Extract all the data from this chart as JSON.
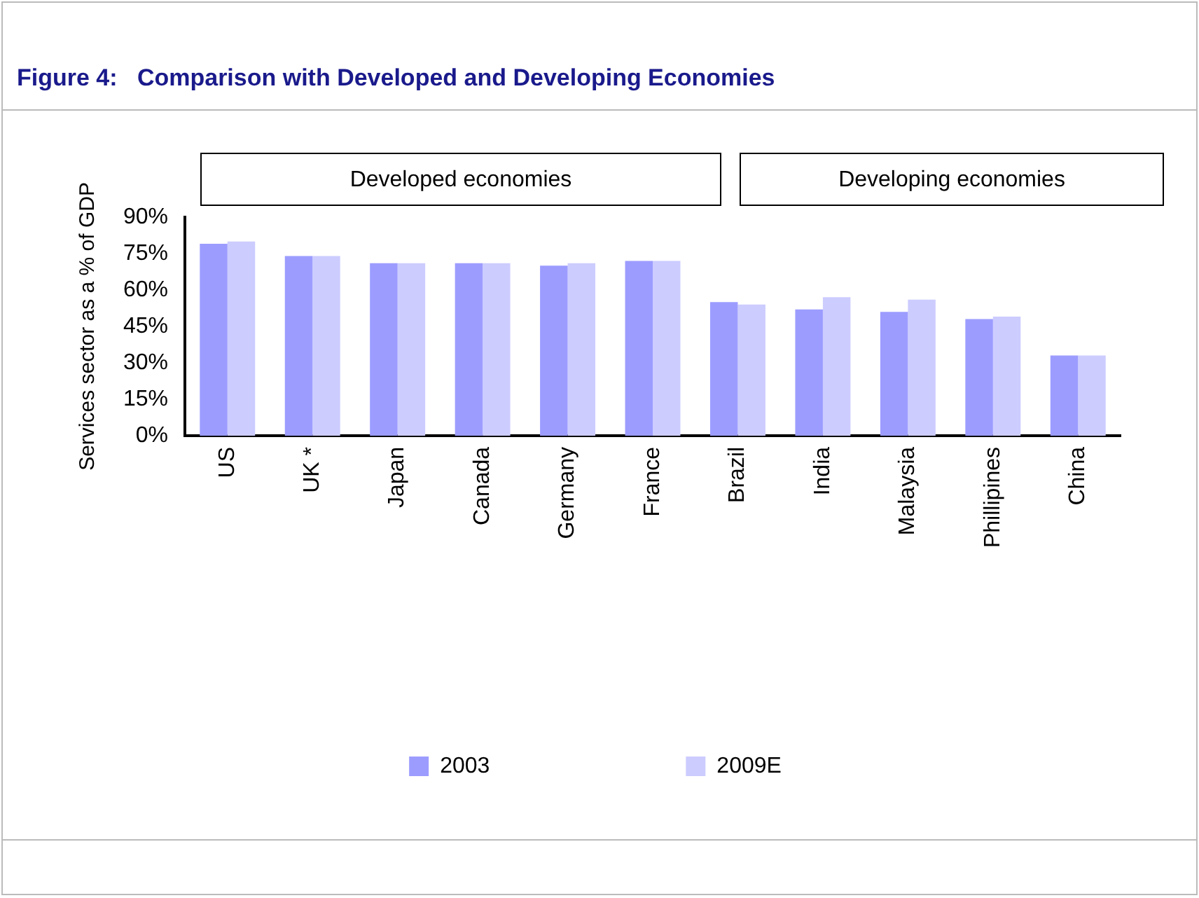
{
  "chart_data": {
    "type": "bar",
    "title": "Figure 4:   Comparison with Developed and Developing Economies",
    "ylabel": "Services sector as a % of GDP",
    "annotations": [
      "Developed economies",
      "Developing economies"
    ],
    "categories": [
      "US",
      "UK *",
      "Japan",
      "Canada",
      "Germany",
      "France",
      "Brazil",
      "India",
      "Malaysia",
      "Phillipines",
      "China"
    ],
    "series": [
      {
        "name": "2003",
        "color": "#9c9cff",
        "values": [
          79,
          74,
          71,
          71,
          70,
          72,
          55,
          52,
          51,
          48,
          33
        ]
      },
      {
        "name": "2009E",
        "color": "#ccccff",
        "values": [
          80,
          74,
          71,
          71,
          71,
          72,
          54,
          57,
          56,
          49,
          33
        ]
      }
    ],
    "ylim": [
      0,
      90
    ],
    "yticks": [
      {
        "value": 0,
        "label": "0%"
      },
      {
        "value": 15,
        "label": "15%"
      },
      {
        "value": 30,
        "label": "30%"
      },
      {
        "value": 45,
        "label": "45%"
      },
      {
        "value": 60,
        "label": "60%"
      },
      {
        "value": 75,
        "label": "75%"
      },
      {
        "value": 90,
        "label": "90%"
      }
    ],
    "grid": false,
    "legend": "bottom"
  }
}
